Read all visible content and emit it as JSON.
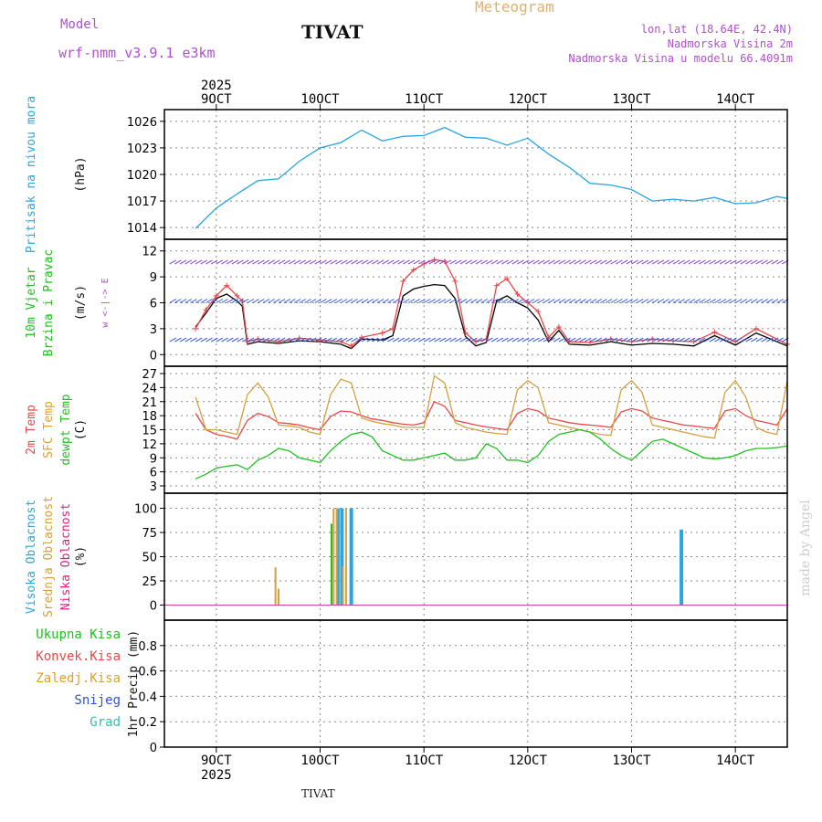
{
  "header": {
    "model_label": "Model",
    "model_name": "wrf-nmm_v3.9.1 e3km",
    "station": "TIVAT",
    "meteogram": "Meteogram",
    "lonlat": "lon,lat (18.64E, 42.4N)",
    "altitude": "Nadmorska Visina 2m",
    "model_altitude": "Nadmorska Visina u modelu 66.4091m",
    "footer_station": "TIVAT",
    "credit": "made by Angel"
  },
  "colors": {
    "purple": "#b050d0",
    "cyan": "#2aa5e0",
    "green": "#20c020",
    "red": "#e84848",
    "orange": "#e0a030",
    "gold": "#d4a040",
    "blue": "#3050e0",
    "teal": "#30c0b0",
    "grid": "#888888"
  },
  "chart_data": [
    {
      "type": "line",
      "name": "pressure",
      "ylabel_lines": [
        "Pritisak na nivou mora",
        "(hPa)"
      ],
      "ylim": [
        1013.5,
        1026.5
      ],
      "yticks": [
        1014,
        1017,
        1020,
        1023,
        1026
      ],
      "x_days": [
        8.8,
        9.0,
        9.2,
        9.4,
        9.6,
        9.8,
        10.0,
        10.2,
        10.4,
        10.6,
        10.8,
        11.0,
        11.2,
        11.4,
        11.6,
        11.8,
        12.0,
        12.2,
        12.4,
        12.6,
        12.8,
        13.0,
        13.2,
        13.4,
        13.6,
        13.8,
        14.0,
        14.2,
        14.4,
        14.5
      ],
      "series": [
        {
          "name": "SLP",
          "values": [
            1013.9,
            1016.2,
            1017.8,
            1019.3,
            1019.5,
            1021.5,
            1023.0,
            1023.6,
            1025.0,
            1023.8,
            1024.3,
            1024.4,
            1025.3,
            1024.2,
            1024.1,
            1023.3,
            1024.1,
            1022.3,
            1020.8,
            1019.0,
            1018.8,
            1018.3,
            1017.0,
            1017.2,
            1017.0,
            1017.4,
            1016.7,
            1016.8,
            1017.5,
            1017.3
          ]
        }
      ]
    },
    {
      "type": "line",
      "name": "wind",
      "ylabel_lines": [
        "10m Vjetar",
        "Brzina i Pravac",
        "(m/s)"
      ],
      "compass": "w <-|-> E",
      "ylim": [
        -0.5,
        12.5
      ],
      "yticks": [
        0,
        3,
        6,
        9,
        12
      ],
      "x_days": [
        8.8,
        8.9,
        9.0,
        9.1,
        9.2,
        9.25,
        9.3,
        9.4,
        9.6,
        9.8,
        10.0,
        10.2,
        10.3,
        10.4,
        10.6,
        10.7,
        10.8,
        10.9,
        11.0,
        11.1,
        11.2,
        11.3,
        11.4,
        11.5,
        11.6,
        11.7,
        11.8,
        11.9,
        12.0,
        12.1,
        12.2,
        12.3,
        12.4,
        12.6,
        12.8,
        13.0,
        13.2,
        13.4,
        13.6,
        13.8,
        14.0,
        14.2,
        14.5
      ],
      "series": [
        {
          "name": "speed",
          "values": [
            3.2,
            4.8,
            6.5,
            7.0,
            6.2,
            5.6,
            1.2,
            1.5,
            1.3,
            1.6,
            1.5,
            1.2,
            0.7,
            1.8,
            1.7,
            2.2,
            6.8,
            7.6,
            7.9,
            8.1,
            8.0,
            6.5,
            2.1,
            1.0,
            1.4,
            6.2,
            6.8,
            6.0,
            5.4,
            4.0,
            1.5,
            2.8,
            1.2,
            1.1,
            1.5,
            1.1,
            1.3,
            1.2,
            1.0,
            2.2,
            1.1,
            2.5,
            1.0
          ]
        },
        {
          "name": "gust",
          "values": [
            3.0,
            5.2,
            6.8,
            8.0,
            6.8,
            6.2,
            1.5,
            1.8,
            1.5,
            1.9,
            1.7,
            1.5,
            1.0,
            2.0,
            2.5,
            3.0,
            8.5,
            9.8,
            10.5,
            11.0,
            10.8,
            8.5,
            2.5,
            1.5,
            1.8,
            8.0,
            8.8,
            7.0,
            6.0,
            5.0,
            2.0,
            3.2,
            1.5,
            1.4,
            1.8,
            1.5,
            1.8,
            1.6,
            1.5,
            2.6,
            1.5,
            3.0,
            1.2
          ]
        }
      ]
    },
    {
      "type": "line",
      "name": "temperature",
      "ylabel_lines": [
        "2m Temp",
        "SFC Temp",
        "dewpt Temp",
        "(C)"
      ],
      "ylim": [
        3,
        27
      ],
      "yticks": [
        3,
        6,
        9,
        12,
        15,
        18,
        21,
        24,
        27
      ],
      "x_days": [
        8.8,
        8.9,
        9.0,
        9.1,
        9.2,
        9.3,
        9.4,
        9.5,
        9.6,
        9.7,
        9.8,
        9.9,
        10.0,
        10.1,
        10.2,
        10.3,
        10.4,
        10.5,
        10.6,
        10.7,
        10.8,
        10.9,
        11.0,
        11.1,
        11.2,
        11.3,
        11.4,
        11.5,
        11.6,
        11.7,
        11.8,
        11.9,
        12.0,
        12.1,
        12.2,
        12.3,
        12.4,
        12.5,
        12.6,
        12.7,
        12.8,
        12.9,
        13.0,
        13.1,
        13.2,
        13.3,
        13.4,
        13.5,
        13.6,
        13.7,
        13.8,
        13.9,
        14.0,
        14.1,
        14.2,
        14.3,
        14.4,
        14.5
      ],
      "series": [
        {
          "name": "2m Temp",
          "values": [
            18.5,
            15.0,
            14.0,
            13.6,
            13.0,
            17.0,
            18.5,
            17.8,
            16.5,
            16.3,
            16.0,
            15.4,
            15.0,
            17.8,
            19.0,
            18.8,
            18.0,
            17.3,
            17.0,
            16.5,
            16.2,
            16.0,
            16.5,
            21.0,
            20.0,
            17.0,
            16.5,
            16.0,
            15.6,
            15.3,
            15.0,
            18.5,
            19.5,
            19.0,
            17.5,
            17.0,
            16.5,
            16.2,
            16.0,
            15.8,
            15.5,
            18.8,
            19.5,
            19.0,
            17.5,
            17.0,
            16.5,
            16.0,
            15.8,
            15.5,
            15.3,
            19.0,
            19.5,
            18.0,
            17.0,
            16.5,
            16.0,
            19.5
          ]
        },
        {
          "name": "SFC Temp",
          "values": [
            22.0,
            15.0,
            15.0,
            14.5,
            14.0,
            22.5,
            25.0,
            22.0,
            16.0,
            15.8,
            15.5,
            14.5,
            14.0,
            22.5,
            25.8,
            25.0,
            17.5,
            16.8,
            16.3,
            16.0,
            15.5,
            15.5,
            15.5,
            26.5,
            25.0,
            16.5,
            15.5,
            15.0,
            14.5,
            14.2,
            14.0,
            23.5,
            25.5,
            24.0,
            16.5,
            16.0,
            15.5,
            15.0,
            14.5,
            14.0,
            13.8,
            23.5,
            25.5,
            23.0,
            16.0,
            15.5,
            15.0,
            14.5,
            14.0,
            13.5,
            13.2,
            23.0,
            25.5,
            22.0,
            15.5,
            14.5,
            14.0,
            25.5
          ]
        },
        {
          "name": "dewpt Temp",
          "values": [
            4.5,
            5.5,
            6.8,
            7.2,
            7.5,
            6.5,
            8.5,
            9.5,
            11.0,
            10.5,
            9.0,
            8.5,
            8.0,
            10.5,
            12.5,
            14.0,
            14.5,
            13.5,
            10.5,
            9.5,
            8.5,
            8.5,
            9.0,
            9.5,
            10.0,
            8.5,
            8.5,
            9.0,
            12.0,
            11.0,
            8.5,
            8.5,
            8.0,
            9.5,
            12.5,
            14.0,
            14.5,
            15.0,
            14.5,
            13.0,
            11.0,
            9.5,
            8.5,
            10.5,
            12.5,
            13.0,
            12.0,
            11.0,
            10.0,
            9.0,
            8.8,
            9.0,
            9.5,
            10.5,
            11.0,
            11.0,
            11.2,
            11.5
          ]
        }
      ]
    },
    {
      "type": "bar",
      "name": "cloud",
      "ylabel_lines": [
        "Visoka Oblacnost",
        "Srednja Oblacnost",
        "Niska Oblacnost",
        "(%)"
      ],
      "ylim": [
        -8,
        108
      ],
      "yticks": [
        0,
        25,
        50,
        75,
        100
      ],
      "series": [
        {
          "name": "Visoka Oblacnost",
          "x_days": [
            10.17,
            10.21,
            10.3,
            13.48
          ],
          "values": [
            100,
            100,
            100,
            78
          ]
        },
        {
          "name": "Srednja Oblacnost",
          "x_days": [
            9.57,
            9.6,
            10.13,
            10.16,
            10.22,
            10.25
          ],
          "values": [
            39,
            17,
            100,
            100,
            40,
            100
          ]
        },
        {
          "name": "Niska Oblacnost",
          "x_days": [
            10.11
          ],
          "values": [
            84
          ]
        }
      ]
    },
    {
      "type": "bar",
      "name": "precip",
      "ylabel_lines": [
        "Ukupna Kisa",
        "Konvek.Kisa",
        "Zaledj.Kisa",
        "Snijeg",
        "Grad",
        "1hr Precip (mm)"
      ],
      "ylim": [
        0,
        1.0
      ],
      "yticks": [
        0,
        0.2,
        0.4,
        0.6,
        0.8
      ],
      "ytick_labels": [
        "0",
        "0.2",
        "0.4",
        "0.6",
        "0.8"
      ],
      "series": []
    }
  ],
  "x_axis": {
    "range_days": [
      8.5,
      14.5
    ],
    "ticks": [
      9,
      10,
      11,
      12,
      13,
      14
    ],
    "tick_labels": [
      "9OCT",
      "10OCT",
      "11OCT",
      "12OCT",
      "13OCT",
      "14OCT"
    ],
    "year": "2025"
  }
}
